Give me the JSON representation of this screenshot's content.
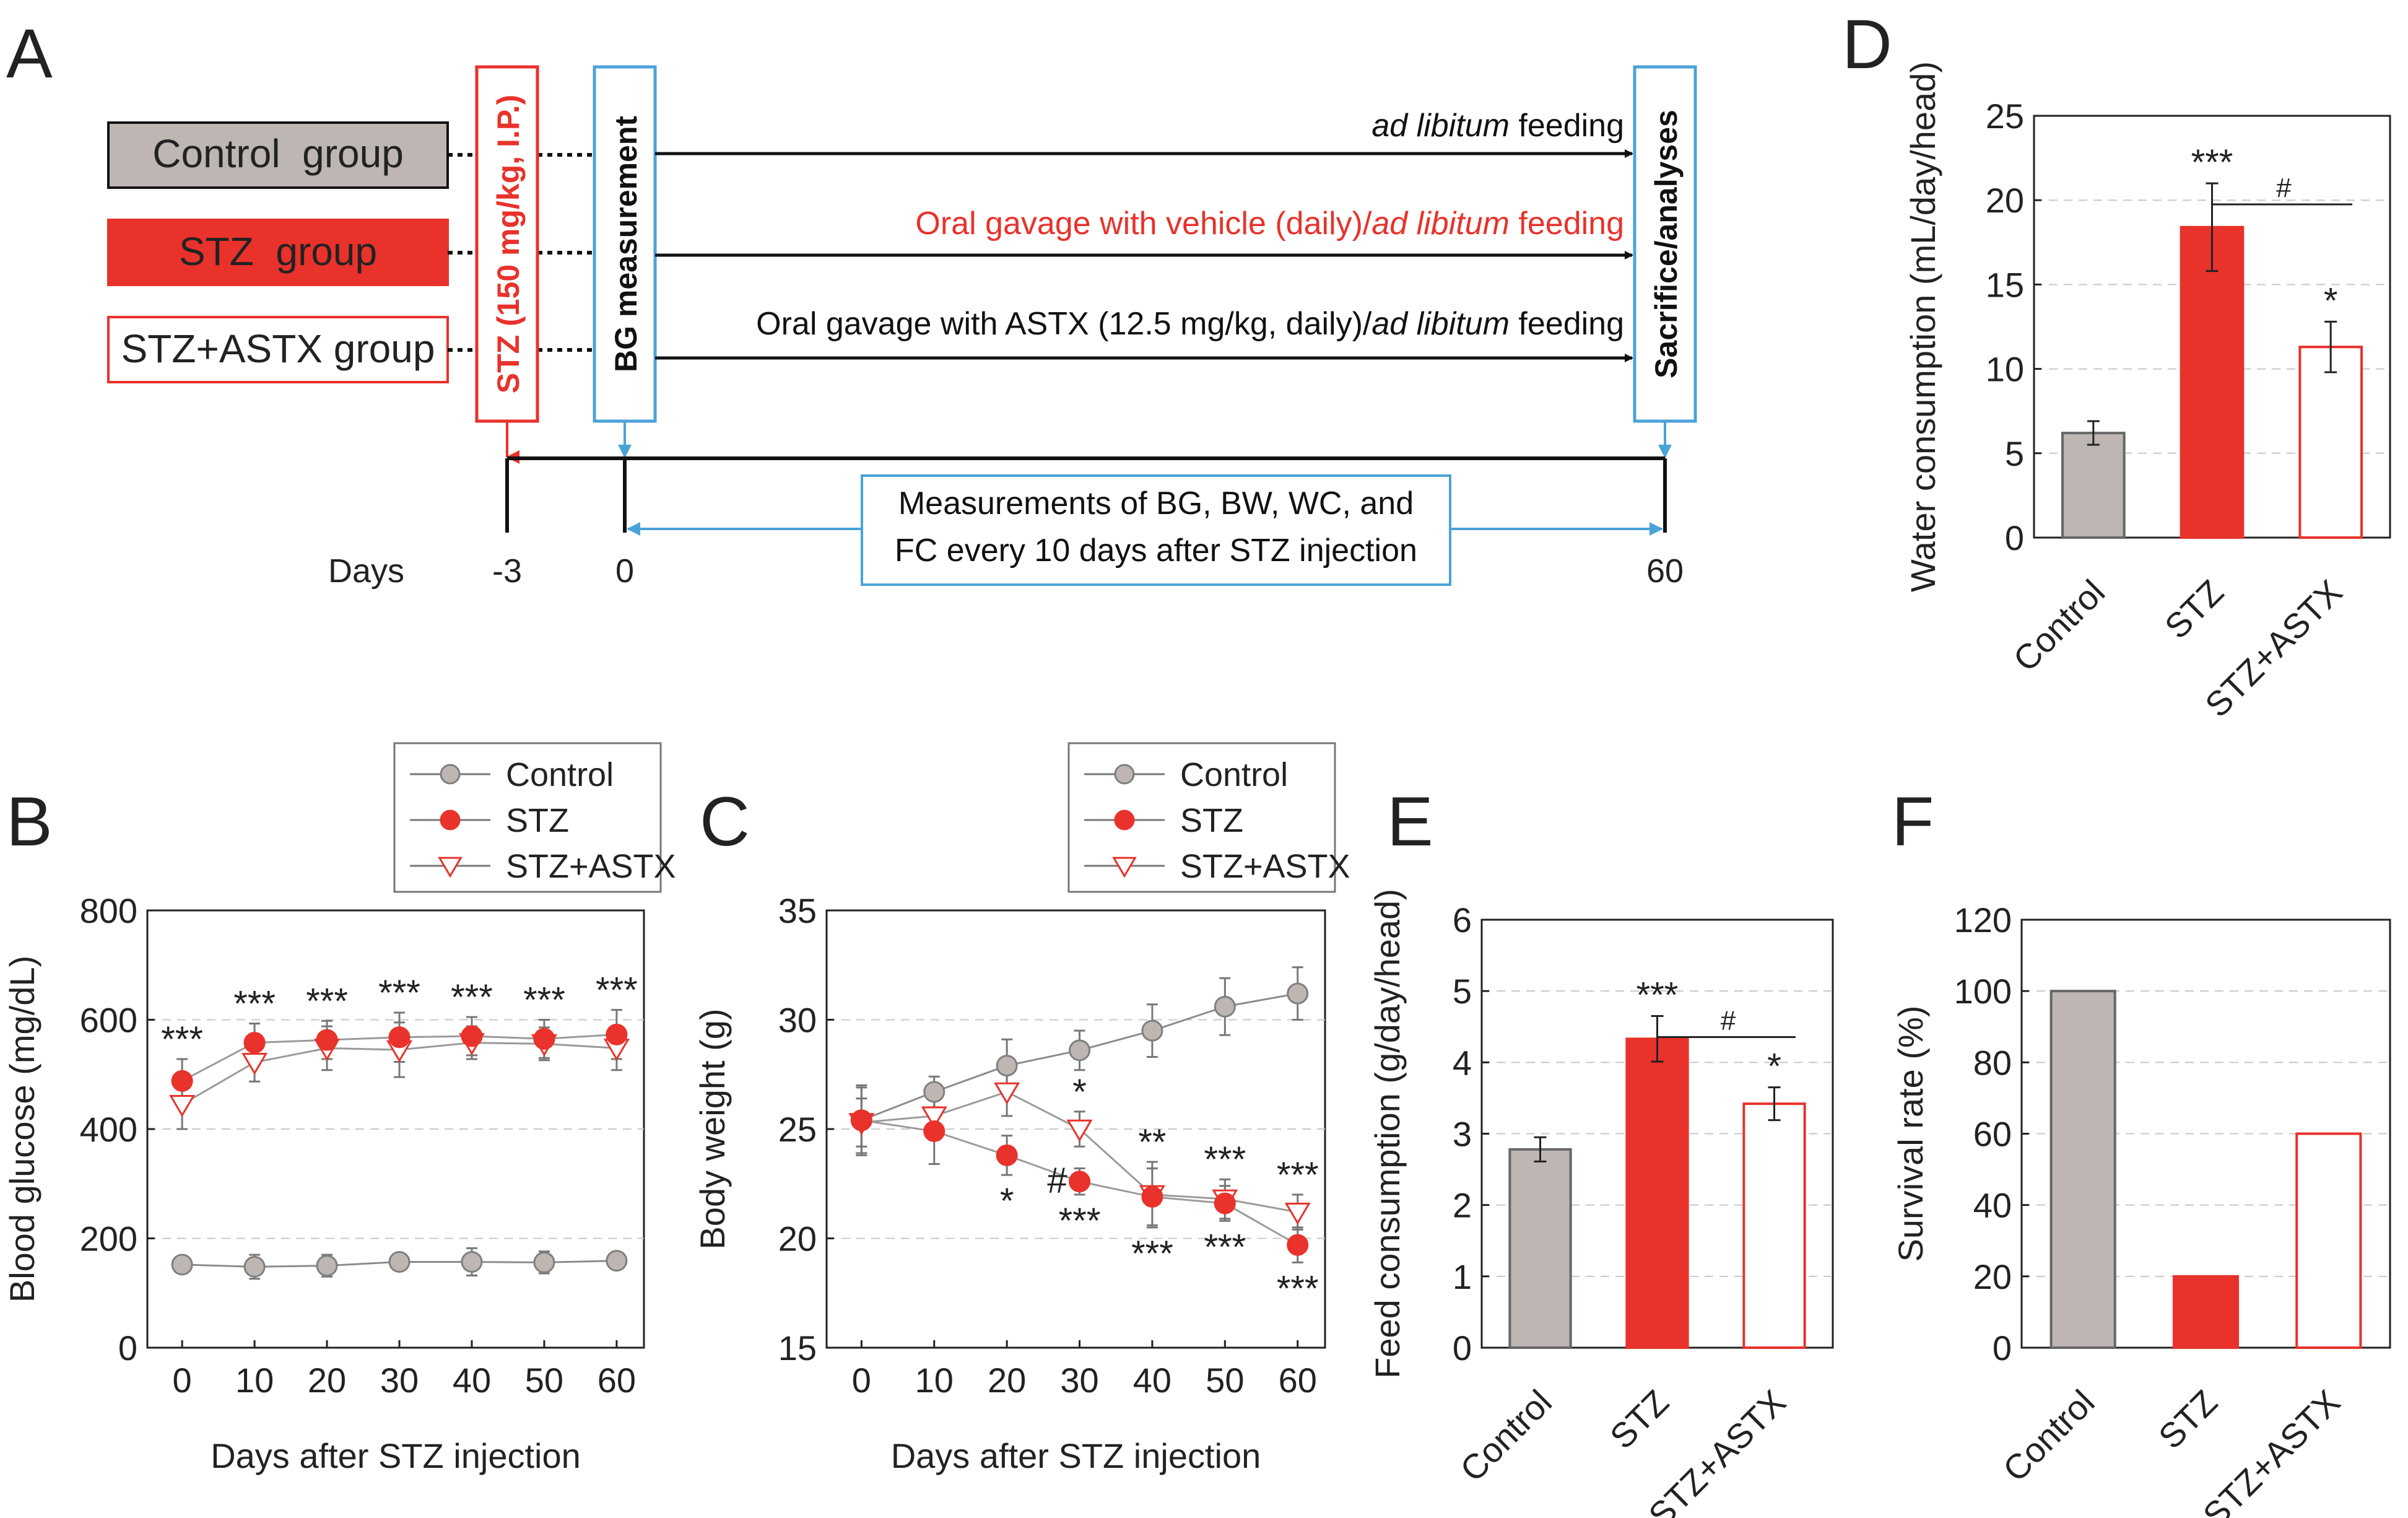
{
  "colors": {
    "control": "#bdb6b3",
    "control_edge": "#7f7f7f",
    "stz": "#e8322b",
    "astx_edge": "#e8322b",
    "blue": "#4aa3d8",
    "red": "#e8322b",
    "grid": "#c8c8c8",
    "text": "#222222"
  },
  "panelA": {
    "letter": "A",
    "groups": [
      "Control  group",
      "STZ  group",
      "STZ+ASTX group"
    ],
    "stz_injection": "STZ (150 mg/kg, I.P.)",
    "bg_measurement": "BG measurement",
    "sacrifice": "Sacrifice/analyses",
    "arrow1": {
      "italic": "ad libitum",
      "normal": " feeding"
    },
    "arrow2": {
      "prefix": "Oral gavage with vehicle (daily)/",
      "italic": "ad libitum",
      "suffix": " feeding"
    },
    "arrow3": {
      "prefix": "Oral gavage with ASTX (12.5 mg/kg, daily)/",
      "italic": "ad libitum",
      "suffix": " feeding"
    },
    "measure_line1": "Measurements of BG, BW, WC, and",
    "measure_line2": "FC every 10 days after STZ injection",
    "days_label": "Days",
    "day_ticks": [
      "-3",
      "0",
      "60"
    ]
  },
  "chart_data": [
    {
      "panel": "B",
      "type": "line",
      "x": [
        0,
        10,
        20,
        30,
        40,
        50,
        60
      ],
      "series": [
        {
          "name": "Control",
          "values": [
            152,
            148,
            150,
            157,
            157,
            156,
            159
          ],
          "errors": [
            15,
            22,
            20,
            12,
            25,
            20,
            15
          ]
        },
        {
          "name": "STZ",
          "values": [
            488,
            558,
            563,
            568,
            570,
            565,
            573
          ],
          "errors": [
            40,
            35,
            35,
            45,
            35,
            35,
            45
          ]
        },
        {
          "name": "STZ+ASTX",
          "values": [
            445,
            522,
            548,
            545,
            558,
            556,
            548
          ],
          "errors": [
            45,
            35,
            40,
            50,
            30,
            30,
            40
          ]
        }
      ],
      "significance": [
        "***",
        "***",
        "***",
        "***",
        "***",
        "***",
        "***"
      ],
      "xlabel": "Days after STZ injection",
      "ylabel": "Blood glucose (mg/dL)",
      "ylim": [
        0,
        800
      ],
      "yticks": [
        0,
        200,
        400,
        600,
        800
      ],
      "legend": [
        "Control",
        "STZ",
        "STZ+ASTX"
      ]
    },
    {
      "panel": "C",
      "type": "line",
      "x": [
        0,
        10,
        20,
        30,
        40,
        50,
        60
      ],
      "series": [
        {
          "name": "Control",
          "values": [
            25.4,
            26.7,
            27.9,
            28.6,
            29.5,
            30.6,
            31.2
          ],
          "errors": [
            1.5,
            0.7,
            1.2,
            0.9,
            1.2,
            1.3,
            1.2
          ]
        },
        {
          "name": "STZ",
          "values": [
            25.4,
            24.9,
            23.8,
            22.6,
            21.9,
            21.6,
            19.7
          ],
          "errors": [
            1.6,
            1.5,
            0.9,
            0.6,
            1.3,
            0.8,
            0.8
          ]
        },
        {
          "name": "STZ+ASTX",
          "values": [
            25.3,
            25.6,
            26.7,
            25.0,
            22.0,
            21.8,
            21.2
          ],
          "errors": [
            1.1,
            1.1,
            1.1,
            0.8,
            1.5,
            0.9,
            0.8
          ]
        }
      ],
      "annotations": [
        {
          "x": 20,
          "text": "*",
          "pos": "below"
        },
        {
          "x": 30,
          "text": "*",
          "pos": "above"
        },
        {
          "x": 30,
          "text": "#",
          "pos": "left"
        },
        {
          "x": 30,
          "text": "***",
          "pos": "below"
        },
        {
          "x": 40,
          "text": "**",
          "pos": "above"
        },
        {
          "x": 40,
          "text": "***",
          "pos": "below"
        },
        {
          "x": 50,
          "text": "***",
          "pos": "above"
        },
        {
          "x": 50,
          "text": "***",
          "pos": "below"
        },
        {
          "x": 60,
          "text": "***",
          "pos": "above"
        },
        {
          "x": 60,
          "text": "***",
          "pos": "below"
        }
      ],
      "xlabel": "Days after STZ injection",
      "ylabel": "Body weight (g)",
      "ylim": [
        15,
        35
      ],
      "yticks": [
        15,
        20,
        25,
        30,
        35
      ],
      "legend": [
        "Control",
        "STZ",
        "STZ+ASTX"
      ]
    },
    {
      "panel": "D",
      "type": "bar",
      "categories": [
        "Control",
        "STZ",
        "STZ+ASTX"
      ],
      "values": [
        6.2,
        18.4,
        11.3
      ],
      "errors": [
        0.7,
        2.6,
        1.5
      ],
      "significance": [
        "",
        "***",
        "*"
      ],
      "comparison": "#",
      "ylabel": "Water consumption (mL/day/head)",
      "ylim": [
        0,
        25
      ],
      "yticks": [
        0,
        5,
        10,
        15,
        20,
        25
      ]
    },
    {
      "panel": "E",
      "type": "bar",
      "categories": [
        "Control",
        "STZ",
        "STZ+ASTX"
      ],
      "values": [
        2.78,
        4.33,
        3.42
      ],
      "errors": [
        0.17,
        0.32,
        0.23
      ],
      "significance": [
        "",
        "***",
        "*"
      ],
      "comparison": "#",
      "ylabel": "Feed consumption (g/day/head)",
      "ylim": [
        0,
        6
      ],
      "yticks": [
        0,
        1,
        2,
        3,
        4,
        5,
        6
      ]
    },
    {
      "panel": "F",
      "type": "bar",
      "categories": [
        "Control",
        "STZ",
        "STZ+ASTX"
      ],
      "values": [
        100,
        20,
        60
      ],
      "ylabel": "Survival rate (%)",
      "ylim": [
        0,
        120
      ],
      "yticks": [
        0,
        20,
        40,
        60,
        80,
        100,
        120
      ]
    }
  ]
}
